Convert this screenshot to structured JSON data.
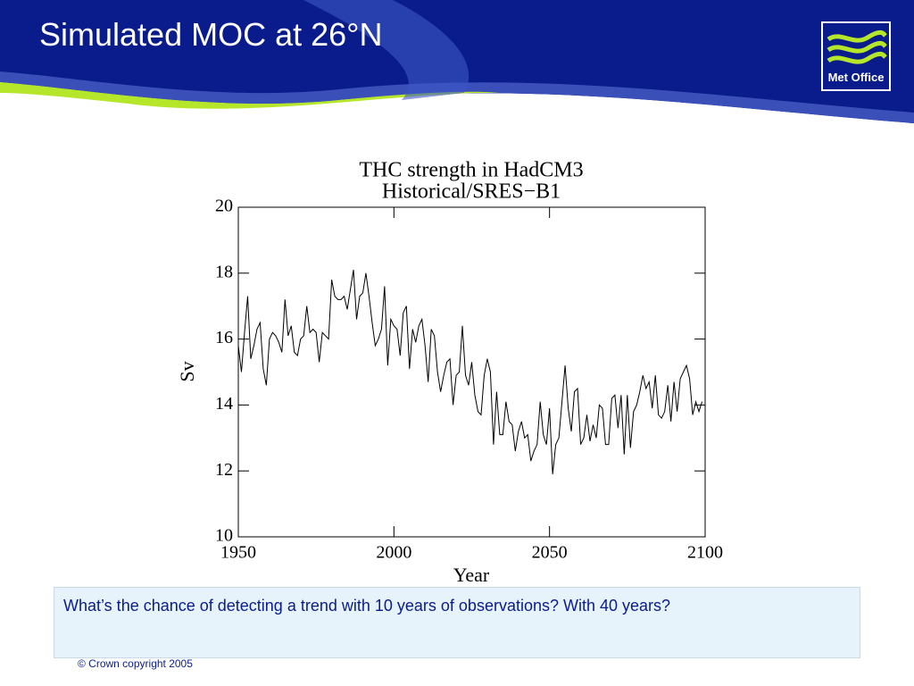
{
  "slide": {
    "title": "Simulated MOC at 26°N",
    "logo": "Met Office",
    "caption": "What’s the chance of detecting a trend with 10 years of observations? With 40 years?",
    "footer": "© Crown copyright 2005"
  },
  "chart_data": {
    "type": "line",
    "title": "THC strength in HadCM3",
    "subtitle": "Historical/SRES−B1",
    "x_label": "Year",
    "y_label": "Sv",
    "xlim": [
      1950,
      2100
    ],
    "xticks": [
      1950,
      2000,
      2050,
      2100
    ],
    "ylim": [
      10,
      20
    ],
    "yticks": [
      10,
      12,
      14,
      16,
      18,
      20
    ],
    "series": [
      {
        "name": "THC strength",
        "color": "#000000",
        "x": [
          1950,
          1951,
          1952,
          1953,
          1954,
          1955,
          1956,
          1957,
          1958,
          1959,
          1960,
          1961,
          1962,
          1963,
          1964,
          1965,
          1966,
          1967,
          1968,
          1969,
          1970,
          1971,
          1972,
          1973,
          1974,
          1975,
          1976,
          1977,
          1978,
          1979,
          1980,
          1981,
          1982,
          1983,
          1984,
          1985,
          1986,
          1987,
          1988,
          1989,
          1990,
          1991,
          1992,
          1993,
          1994,
          1995,
          1996,
          1997,
          1998,
          1999,
          2000,
          2001,
          2002,
          2003,
          2004,
          2005,
          2006,
          2007,
          2008,
          2009,
          2010,
          2011,
          2012,
          2013,
          2014,
          2015,
          2016,
          2017,
          2018,
          2019,
          2020,
          2021,
          2022,
          2023,
          2024,
          2025,
          2026,
          2027,
          2028,
          2029,
          2030,
          2031,
          2032,
          2033,
          2034,
          2035,
          2036,
          2037,
          2038,
          2039,
          2040,
          2041,
          2042,
          2043,
          2044,
          2045,
          2046,
          2047,
          2048,
          2049,
          2050,
          2051,
          2052,
          2053,
          2054,
          2055,
          2056,
          2057,
          2058,
          2059,
          2060,
          2061,
          2062,
          2063,
          2064,
          2065,
          2066,
          2067,
          2068,
          2069,
          2070,
          2071,
          2072,
          2073,
          2074,
          2075,
          2076,
          2077,
          2078,
          2079,
          2080,
          2081,
          2082,
          2083,
          2084,
          2085,
          2086,
          2087,
          2088,
          2089,
          2090,
          2091,
          2092,
          2093,
          2094,
          2095,
          2096,
          2097,
          2098,
          2099
        ],
        "values": [
          15.8,
          15.0,
          16.2,
          17.3,
          15.4,
          15.8,
          16.3,
          16.5,
          15.1,
          14.6,
          16.0,
          16.2,
          16.1,
          15.9,
          15.6,
          17.2,
          16.1,
          16.4,
          15.6,
          15.5,
          16.0,
          16.1,
          17.0,
          16.2,
          16.3,
          16.2,
          15.3,
          16.2,
          16.1,
          16.0,
          17.8,
          17.3,
          17.2,
          17.2,
          17.3,
          16.9,
          17.5,
          18.1,
          16.6,
          17.3,
          17.4,
          18.0,
          17.3,
          16.5,
          15.8,
          16.0,
          16.3,
          17.6,
          15.2,
          16.6,
          16.4,
          16.3,
          15.5,
          16.8,
          17.0,
          15.1,
          16.3,
          15.9,
          16.4,
          16.6,
          15.8,
          14.7,
          16.3,
          16.1,
          15.0,
          14.4,
          14.9,
          15.3,
          15.4,
          14.0,
          14.9,
          15.0,
          16.4,
          14.9,
          14.6,
          15.3,
          14.3,
          13.8,
          13.7,
          14.9,
          15.4,
          15.0,
          12.8,
          14.4,
          13.1,
          13.1,
          14.1,
          13.5,
          13.4,
          12.6,
          13.2,
          13.5,
          13.0,
          13.1,
          12.3,
          12.6,
          12.8,
          14.1,
          13.1,
          12.8,
          13.9,
          11.9,
          12.8,
          13.0,
          14.1,
          15.2,
          13.9,
          13.2,
          14.4,
          14.5,
          12.8,
          13.0,
          13.7,
          12.9,
          13.4,
          13.0,
          14.0,
          13.9,
          12.8,
          12.8,
          14.2,
          14.3,
          13.3,
          14.3,
          12.5,
          14.3,
          12.7,
          13.8,
          14.0,
          14.4,
          14.9,
          14.5,
          14.7,
          13.9,
          14.9,
          13.7,
          13.6,
          13.8,
          14.6,
          13.5,
          14.7,
          13.8,
          14.8,
          15.0,
          15.2,
          14.8,
          13.7,
          14.1,
          13.8,
          14.1
        ]
      }
    ]
  }
}
